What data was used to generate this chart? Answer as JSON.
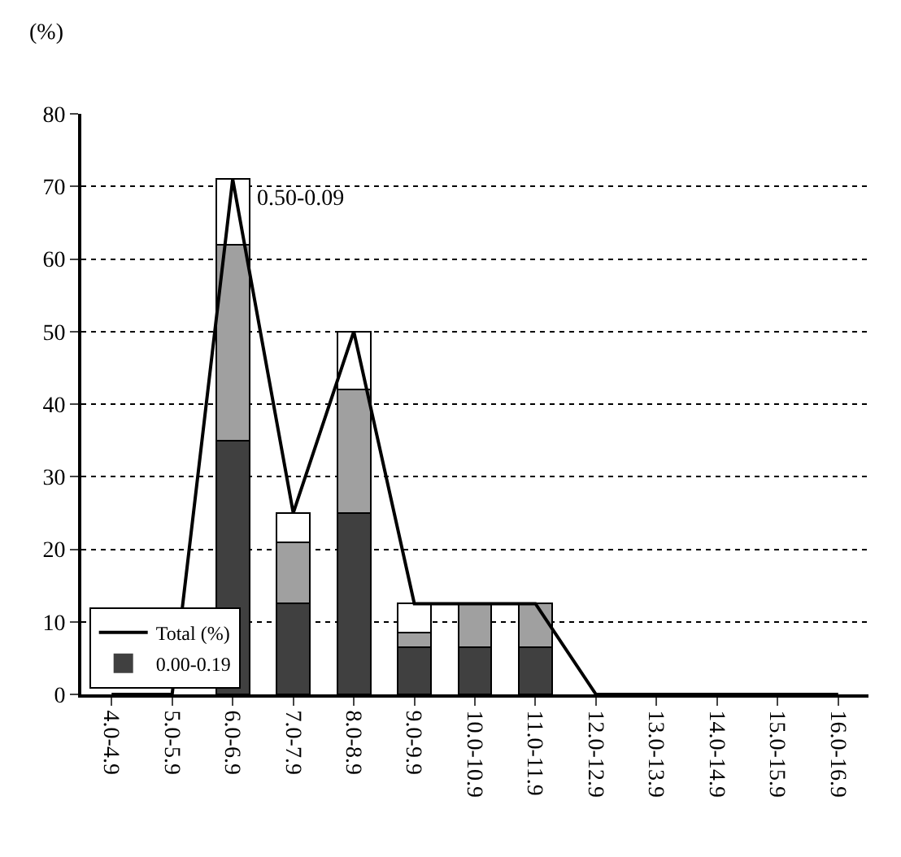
{
  "chart_data": {
    "type": "bar",
    "stacked": true,
    "ylabel": "(%)",
    "categories": [
      "4.0-4.9",
      "5.0-5.9",
      "6.0-6.9",
      "7.0-7.9",
      "8.0-8.9",
      "9.0-9.9",
      "10.0-10.9",
      "11.0-11.9",
      "12.0-12.9",
      "13.0-13.9",
      "14.0-14.9",
      "15.0-15.9",
      "16.0-16.9"
    ],
    "series": [
      {
        "name": "0.00-0.19",
        "color": "#404040",
        "values": [
          0,
          0,
          35,
          12.5,
          25,
          6.5,
          6.5,
          6.5,
          0,
          0,
          0,
          0,
          0
        ]
      },
      {
        "color": "#a0a0a0",
        "values": [
          0,
          0,
          27,
          8.5,
          17,
          2,
          6,
          6,
          0,
          0,
          0,
          0,
          0
        ]
      },
      {
        "name": "0.50-0.09",
        "color": "#ffffff",
        "values": [
          0,
          0,
          9,
          4,
          8,
          4,
          0,
          0,
          0,
          0,
          0,
          0,
          0
        ]
      },
      {
        "name": "Total (%)",
        "type": "line",
        "color": "#000000",
        "values": [
          0,
          0,
          71,
          25,
          50,
          12.5,
          12.5,
          12.5,
          0,
          0,
          0,
          0,
          0
        ]
      }
    ],
    "ylim": [
      0,
      80
    ],
    "yticks": [
      0,
      10,
      20,
      30,
      40,
      50,
      60,
      70,
      80
    ],
    "grid": "y",
    "legend": "bottom left",
    "marker": "none",
    "line_style": "solid"
  }
}
